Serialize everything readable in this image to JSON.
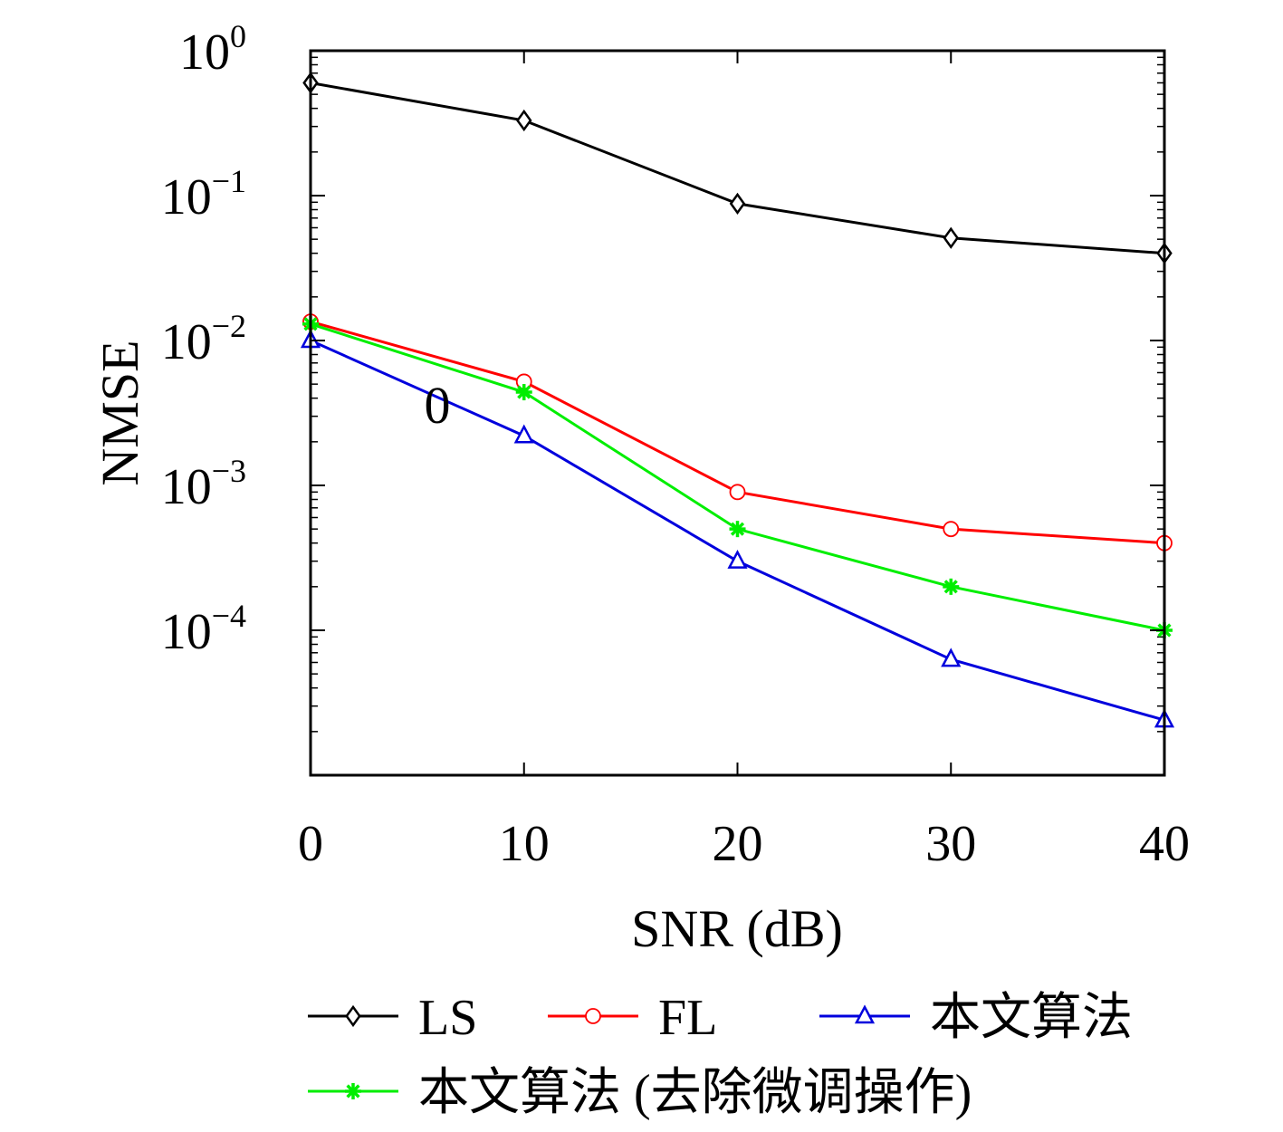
{
  "chart_data": {
    "type": "line",
    "xlabel": "SNR (dB)",
    "ylabel": "NMSE",
    "x": [
      0,
      10,
      20,
      30,
      40
    ],
    "xlim": [
      0,
      40
    ],
    "ylim": [
      1e-05,
      1
    ],
    "yscale": "log",
    "x_ticks": [
      "0",
      "10",
      "20",
      "30",
      "40"
    ],
    "y_ticks": [
      {
        "base": "10",
        "exp": "0"
      },
      {
        "base": "10",
        "exp": "−1"
      },
      {
        "base": "10",
        "exp": "−2"
      },
      {
        "base": "10",
        "exp": "−3"
      },
      {
        "base": "10",
        "exp": "−4"
      }
    ],
    "annotation": "0",
    "legend_position": "bottom",
    "series": [
      {
        "name": "LS",
        "color": "#000000",
        "marker": "diamond",
        "values": [
          0.6,
          0.33,
          0.088,
          0.051,
          0.04
        ]
      },
      {
        "name": "FL",
        "color": "#ff0000",
        "marker": "circle",
        "values": [
          0.0135,
          0.0052,
          0.0009,
          0.0005,
          0.0004
        ]
      },
      {
        "name": "本文算法",
        "color": "#0000dd",
        "marker": "triangle",
        "values": [
          0.01,
          0.0022,
          0.0003,
          6.3e-05,
          2.4e-05
        ]
      },
      {
        "name": "本文算法 (去除微调操作)",
        "color": "#00ee00",
        "marker": "star",
        "values": [
          0.013,
          0.0044,
          0.0005,
          0.0002,
          0.0001
        ]
      }
    ]
  }
}
